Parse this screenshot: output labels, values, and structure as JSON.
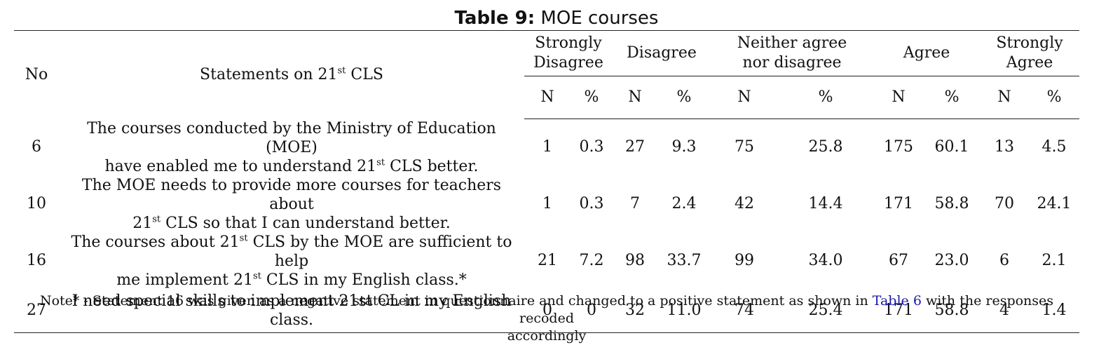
{
  "caption": {
    "label": "Table 9:",
    "title": "MOE courses"
  },
  "header": {
    "no": "No",
    "statements_prefix": "Statements on 21",
    "statements_sup": "st",
    "statements_suffix": " CLS",
    "groups": [
      "Strongly Disagree",
      "Disagree",
      "Neither agree nor disagree",
      "Agree",
      "Strongly Agree"
    ],
    "sub": [
      "N",
      "%",
      "N",
      "%",
      "N",
      "%",
      "N",
      "%",
      "N",
      "%"
    ]
  },
  "rows": [
    {
      "no": "6",
      "l1a": "The courses conducted by the Ministry of Education (MOE)",
      "l2a": "have enabled me to understand 21",
      "l2sup": "st",
      "l2b": " CLS better.",
      "vals": [
        "1",
        "0.3",
        "27",
        "9.3",
        "75",
        "25.8",
        "175",
        "60.1",
        "13",
        "4.5"
      ]
    },
    {
      "no": "10",
      "l1a": "The MOE needs to provide more courses for teachers about",
      "l2a": "21",
      "l2sup": "st",
      "l2b": " CLS so that I can understand better.",
      "vals": [
        "1",
        "0.3",
        "7",
        "2.4",
        "42",
        "14.4",
        "171",
        "58.8",
        "70",
        "24.1"
      ]
    },
    {
      "no": "16",
      "l1a": "The courses about 21",
      "l1sup": "st",
      "l1b": " CLS by the MOE are sufficient to help",
      "l2a": "me implement 21",
      "l2sup": "st",
      "l2b": " CLS in my English class.*",
      "vals": [
        "21",
        "7.2",
        "98",
        "33.7",
        "99",
        "34.0",
        "67",
        "23.0",
        "6",
        "2.1"
      ]
    },
    {
      "no": "27",
      "l1a": "I need special skills to implement 21st CL in my English",
      "l2a": "class.",
      "vals": [
        "0",
        "0",
        "32",
        "11.0",
        "74",
        "25.4",
        "171",
        "58.8",
        "4",
        "1.4"
      ]
    }
  ],
  "note": {
    "prefix": "Note* - Statement 16 was given as a negative statement in questionnaire and changed to a positive statement as shown in ",
    "link": "Table 6",
    "suffix": " with the responses recoded",
    "line2": "accordingly"
  },
  "colors": {
    "link": "#1a1aa8",
    "rule": "#222222"
  }
}
